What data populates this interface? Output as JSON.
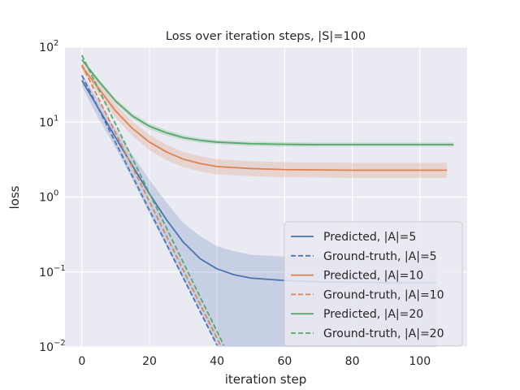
{
  "chart_data": {
    "type": "line",
    "title": "Loss over iteration steps, |S|=100",
    "xlabel": "iteration step",
    "ylabel": "loss",
    "yscale": "log",
    "xlim": [
      -5,
      114
    ],
    "ylim": [
      0.01,
      100
    ],
    "xticks": [
      0,
      20,
      40,
      60,
      80,
      100
    ],
    "yticks": [
      {
        "value": 0.01,
        "base": "10",
        "exp": "−2"
      },
      {
        "value": 0.1,
        "base": "10",
        "exp": "−1"
      },
      {
        "value": 1,
        "base": "10",
        "exp": "0"
      },
      {
        "value": 10,
        "base": "10",
        "exp": "1"
      },
      {
        "value": 100,
        "base": "10",
        "exp": "2"
      }
    ],
    "grid": true,
    "legend_position": "lower-right",
    "series": [
      {
        "name": "Predicted, |A|=5",
        "style": "solid",
        "color": "#4c72b0",
        "x": [
          0,
          5,
          10,
          15,
          20,
          25,
          30,
          35,
          40,
          45,
          50,
          60,
          70,
          80,
          90,
          100,
          105
        ],
        "y": [
          36,
          15,
          6.2,
          2.6,
          1.1,
          0.5,
          0.25,
          0.15,
          0.11,
          0.092,
          0.083,
          0.077,
          0.074,
          0.073,
          0.072,
          0.072,
          0.072
        ],
        "band_low": [
          30,
          11,
          4.5,
          1.7,
          0.6,
          0.22,
          0.08,
          0.03,
          0.01,
          0.01,
          0.01,
          0.01,
          0.01,
          0.01,
          0.01,
          0.01,
          0.01
        ],
        "band_high": [
          44,
          19,
          8.2,
          3.6,
          1.7,
          0.85,
          0.45,
          0.3,
          0.22,
          0.19,
          0.17,
          0.16,
          0.155,
          0.15,
          0.15,
          0.15,
          0.15
        ]
      },
      {
        "name": "Ground-truth, |A|=5",
        "style": "dashed",
        "color": "#4c72b0",
        "x": [
          0,
          40
        ],
        "y": [
          42,
          0.0105
        ]
      },
      {
        "name": "Predicted, |A|=10",
        "style": "solid",
        "color": "#dd8452",
        "x": [
          0,
          5,
          10,
          15,
          20,
          25,
          30,
          35,
          40,
          50,
          60,
          70,
          80,
          90,
          100,
          108
        ],
        "y": [
          55,
          28,
          14,
          8.2,
          5.4,
          4.0,
          3.2,
          2.8,
          2.55,
          2.4,
          2.32,
          2.3,
          2.28,
          2.28,
          2.28,
          2.28
        ],
        "band_low": [
          49,
          23.5,
          11.3,
          6.5,
          4.2,
          3.1,
          2.5,
          2.2,
          2.0,
          1.9,
          1.84,
          1.82,
          1.8,
          1.8,
          1.8,
          1.8
        ],
        "band_high": [
          62,
          33,
          17,
          10.2,
          6.8,
          5.0,
          4.0,
          3.5,
          3.2,
          3.0,
          2.92,
          2.88,
          2.86,
          2.86,
          2.86,
          2.86
        ]
      },
      {
        "name": "Ground-truth, |A|=10",
        "style": "dashed",
        "color": "#dd8452",
        "x": [
          0,
          41
        ],
        "y": [
          58,
          0.0105
        ]
      },
      {
        "name": "Predicted, |A|=20",
        "style": "solid",
        "color": "#55a868",
        "x": [
          0,
          5,
          10,
          15,
          20,
          25,
          30,
          35,
          40,
          50,
          60,
          70,
          80,
          90,
          100,
          110
        ],
        "y": [
          68,
          35,
          19,
          12,
          8.8,
          7.2,
          6.2,
          5.7,
          5.4,
          5.15,
          5.05,
          5.0,
          5.0,
          5.0,
          5.0,
          5.0
        ],
        "band_low": [
          64,
          32.5,
          17.5,
          11,
          8.0,
          6.6,
          5.75,
          5.3,
          5.05,
          4.8,
          4.72,
          4.7,
          4.7,
          4.7,
          4.7,
          4.7
        ],
        "band_high": [
          72,
          37.5,
          20.5,
          13,
          9.6,
          7.8,
          6.7,
          6.1,
          5.78,
          5.5,
          5.4,
          5.35,
          5.35,
          5.35,
          5.35,
          5.35
        ]
      },
      {
        "name": "Ground-truth, |A|=20",
        "style": "dashed",
        "color": "#55a868",
        "x": [
          0,
          42
        ],
        "y": [
          78,
          0.0105
        ]
      }
    ]
  }
}
